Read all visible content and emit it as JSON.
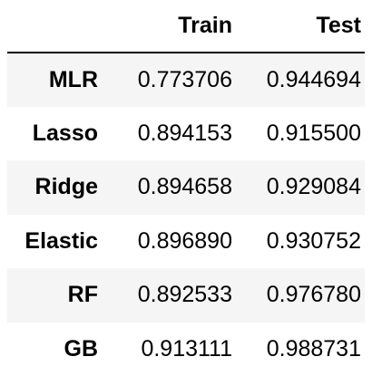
{
  "table": {
    "index_header": "",
    "columns": [
      "Train",
      "Test"
    ],
    "rows": [
      {
        "label": "MLR",
        "train": "0.773706",
        "test": "0.944694"
      },
      {
        "label": "Lasso",
        "train": "0.894153",
        "test": "0.915500"
      },
      {
        "label": "Ridge",
        "train": "0.894658",
        "test": "0.929084"
      },
      {
        "label": "Elastic",
        "train": "0.896890",
        "test": "0.930752"
      },
      {
        "label": "RF",
        "train": "0.892533",
        "test": "0.976780"
      },
      {
        "label": "GB",
        "train": "0.913111",
        "test": "0.988731"
      }
    ]
  },
  "colors": {
    "stripe": "#f5f5f5",
    "text": "#000000",
    "header_rule": "#000000"
  }
}
